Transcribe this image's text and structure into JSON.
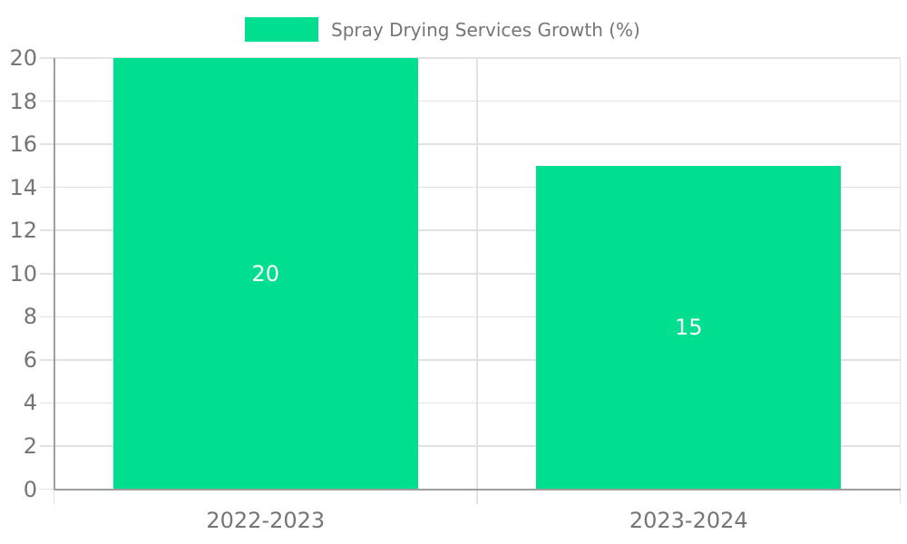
{
  "legend": {
    "label": "Spray Drying Services Growth (%)"
  },
  "colors": {
    "bar": "#00de90",
    "axis": "#9e9e9e",
    "grid": "#e2e2e2",
    "text": "#757575",
    "bar_label": "#ffffff"
  },
  "chart_data": {
    "type": "bar",
    "categories": [
      "2022-2023",
      "2023-2024"
    ],
    "series": [
      {
        "name": "Spray Drying Services Growth (%)",
        "values": [
          20,
          15
        ]
      }
    ],
    "bar_labels": [
      "20",
      "15"
    ],
    "title": "",
    "xlabel": "",
    "ylabel": "",
    "ylim": [
      0,
      20
    ],
    "yticks": [
      0,
      2,
      4,
      6,
      8,
      10,
      12,
      14,
      16,
      18,
      20
    ],
    "grid": true,
    "legend_position": "top"
  }
}
